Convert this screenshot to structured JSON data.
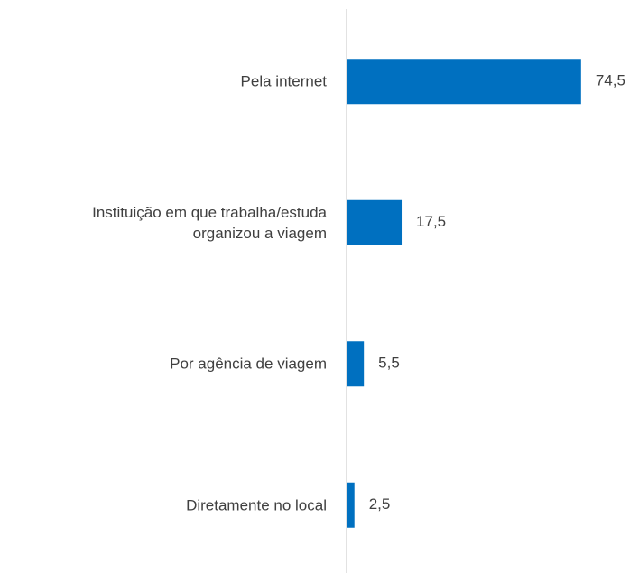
{
  "chart_data": {
    "type": "bar",
    "orientation": "horizontal",
    "categories": [
      "Pela internet",
      "Instituição em que trabalha/estuda\norganizou a viagem",
      "Por agência de viagem",
      "Diretamente no local"
    ],
    "values": [
      74.5,
      17.5,
      5.5,
      2.5
    ],
    "value_labels": [
      "74,5",
      "17,5",
      "5,5",
      "2,5"
    ],
    "color": "#0070c0",
    "xlim": [
      0,
      80
    ]
  }
}
